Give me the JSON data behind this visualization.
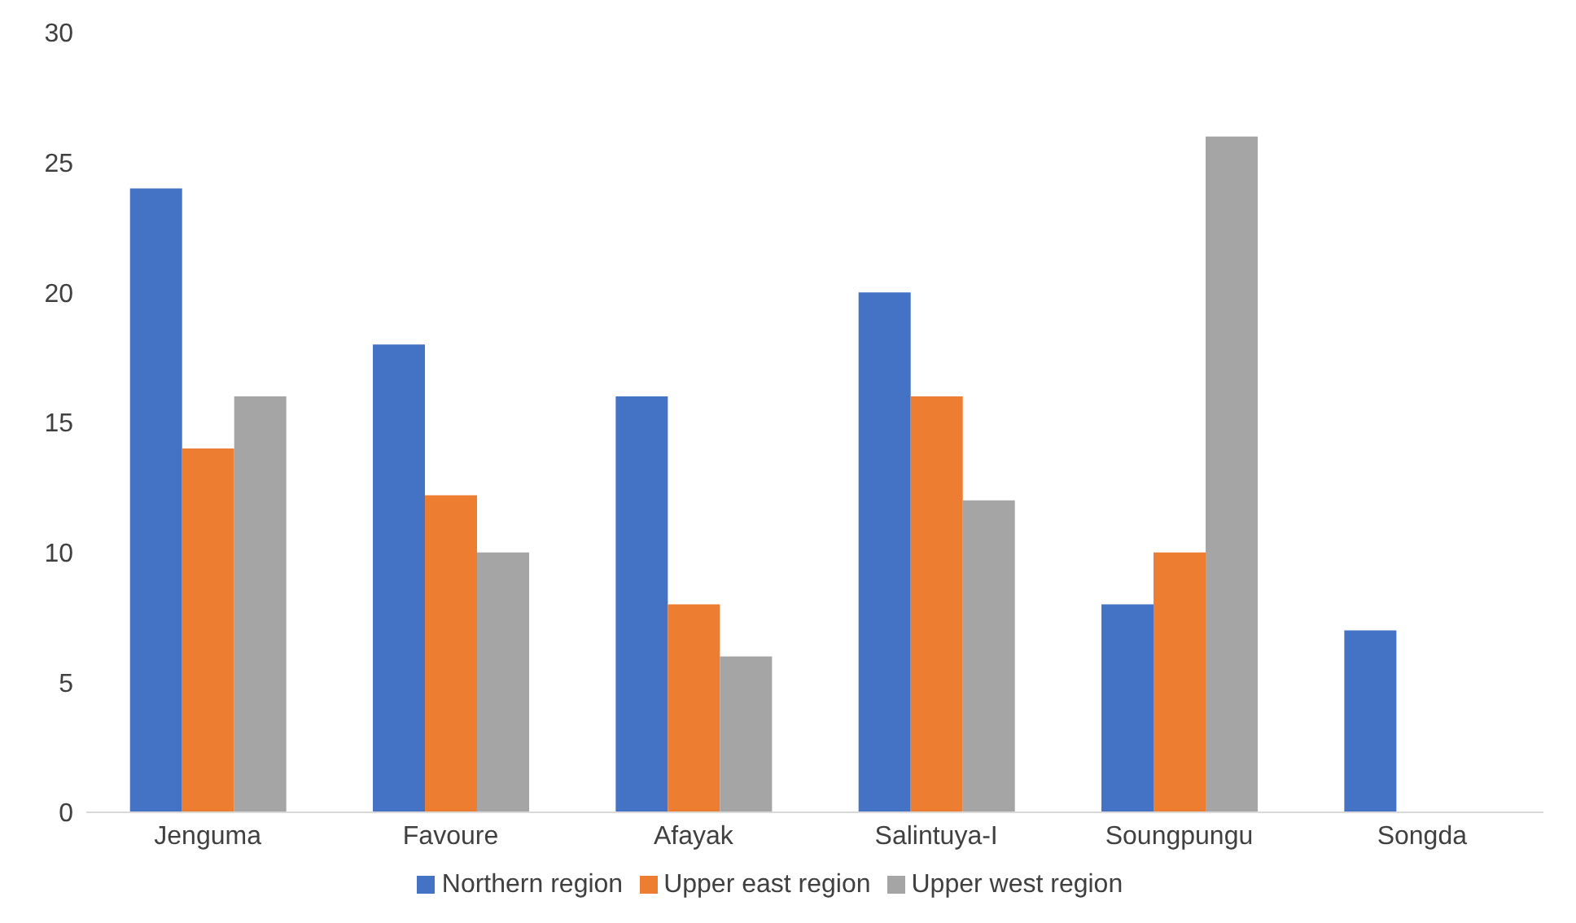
{
  "chart_data": {
    "type": "bar",
    "categories": [
      "Jenguma",
      "Favoure",
      "Afayak",
      "Salintuya-I",
      "Soungpungu",
      "Songda"
    ],
    "series": [
      {
        "name": "Northern region",
        "color": "#4472c4",
        "values": [
          24,
          18,
          16,
          20,
          8,
          7
        ]
      },
      {
        "name": "Upper east region",
        "color": "#ed7d31",
        "values": [
          14,
          12.2,
          8,
          16,
          10,
          null
        ]
      },
      {
        "name": "Upper west region",
        "color": "#a5a5a5",
        "values": [
          16,
          10,
          6,
          12,
          26,
          null
        ]
      }
    ],
    "ylim": [
      0,
      30
    ],
    "yticks": [
      0,
      5,
      10,
      15,
      20,
      25,
      30
    ],
    "grid": false,
    "legend": "bottom"
  }
}
